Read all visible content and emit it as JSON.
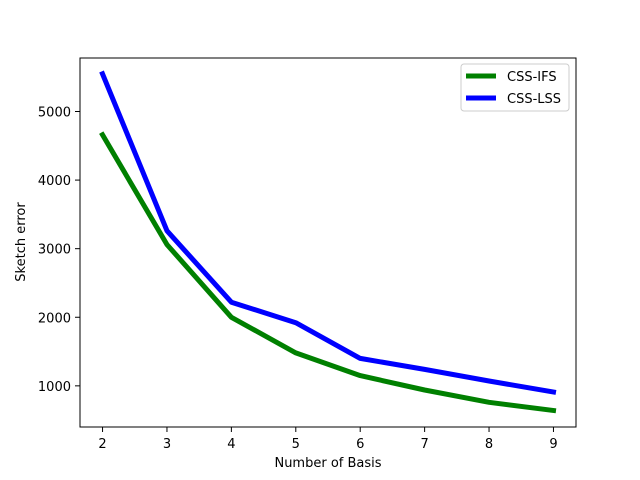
{
  "chart_data": {
    "type": "line",
    "title": "",
    "xlabel": "Number of Basis",
    "ylabel": "Sketch error",
    "x": [
      2,
      3,
      4,
      5,
      6,
      7,
      8,
      9
    ],
    "xlim": [
      1.65,
      9.35
    ],
    "ylim": [
      400,
      5780
    ],
    "xticks": [
      2,
      3,
      4,
      5,
      6,
      7,
      8,
      9
    ],
    "yticks": [
      1000,
      2000,
      3000,
      4000,
      5000
    ],
    "grid": false,
    "legend_position": "top-right",
    "series": [
      {
        "name": "CSS-IFS",
        "color": "#008000",
        "values": [
          4660,
          3060,
          2000,
          1480,
          1150,
          940,
          760,
          640
        ]
      },
      {
        "name": "CSS-LSS",
        "color": "#0000ff",
        "values": [
          5550,
          3260,
          2220,
          1920,
          1400,
          1240,
          1070,
          910
        ]
      }
    ]
  }
}
